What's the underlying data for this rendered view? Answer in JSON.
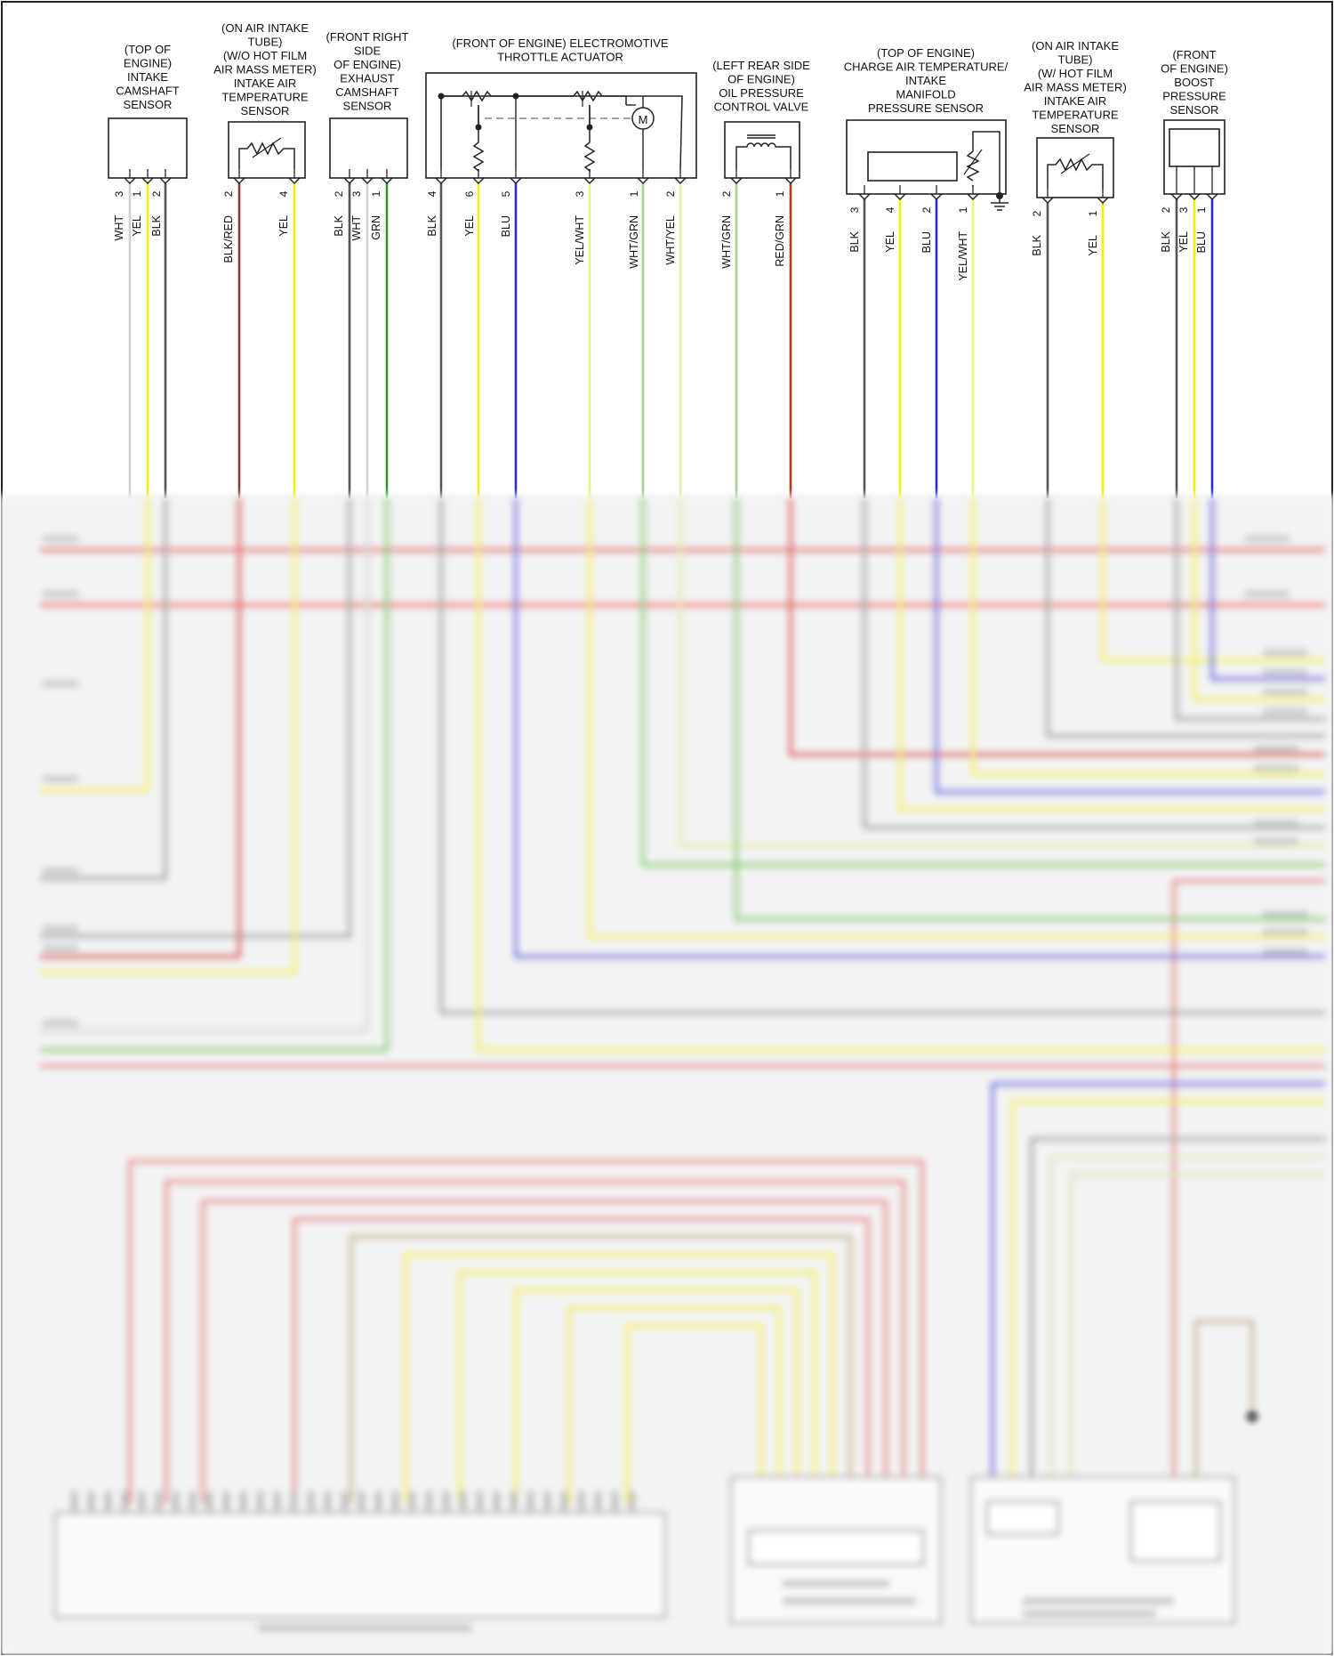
{
  "wire_colors": {
    "WHT": "#d0d0d0",
    "YEL": "#f2f200",
    "BLK": "#555555",
    "BLU": "#2b2bcc",
    "GRN": "#2c9a2c",
    "RED": "#b03a1a",
    "YEL/WHT": "#eef27a",
    "WHT/GRN": "#9fcf92",
    "WHT/YEL": "#e6f0a8",
    "BLK/RED": "#8a3a3a"
  },
  "components": [
    {
      "id": "intake-camshaft-sensor",
      "title_lines": [
        "(TOP OF",
        "ENGINE)",
        "INTAKE",
        "CAMSHAFT",
        "SENSOR"
      ],
      "pins": [
        {
          "pin": "3",
          "wire": "WHT"
        },
        {
          "pin": "1",
          "wire": "YEL"
        },
        {
          "pin": "2",
          "wire": "BLK"
        }
      ]
    },
    {
      "id": "intake-air-temp-sensor-wo-hfm",
      "title_lines": [
        "(ON AIR INTAKE",
        "TUBE)",
        "(W/O HOT FILM",
        "AIR MASS METER)",
        "INTAKE AIR",
        "TEMPERATURE",
        "SENSOR"
      ],
      "pins": [
        {
          "pin": "2",
          "wire": "BLK/RED"
        },
        {
          "pin": "4",
          "wire": "YEL"
        }
      ]
    },
    {
      "id": "exhaust-camshaft-sensor",
      "title_lines": [
        "(FRONT RIGHT",
        "SIDE",
        "OF ENGINE)",
        "EXHAUST",
        "CAMSHAFT",
        "SENSOR"
      ],
      "pins": [
        {
          "pin": "2",
          "wire": "BLK"
        },
        {
          "pin": "3",
          "wire": "WHT"
        },
        {
          "pin": "1",
          "wire": "GRN"
        }
      ]
    },
    {
      "id": "electromotive-throttle-actuator",
      "title_lines": [
        "(FRONT OF ENGINE) ELECTROMOTIVE",
        "THROTTLE ACTUATOR"
      ],
      "motor_label": "M",
      "pins": [
        {
          "pin": "4",
          "wire": "BLK"
        },
        {
          "pin": "6",
          "wire": "YEL"
        },
        {
          "pin": "5",
          "wire": "BLU"
        },
        {
          "pin": "3",
          "wire": "YEL/WHT"
        },
        {
          "pin": "1",
          "wire": "WHT/GRN"
        },
        {
          "pin": "2",
          "wire": "WHT/YEL"
        }
      ]
    },
    {
      "id": "oil-pressure-control-valve",
      "title_lines": [
        "(LEFT REAR SIDE",
        "OF ENGINE)",
        "OIL PRESSURE",
        "CONTROL VALVE"
      ],
      "pins": [
        {
          "pin": "2",
          "wire": "WHT/GRN"
        },
        {
          "pin": "1",
          "wire": "RED/GRN"
        }
      ]
    },
    {
      "id": "charge-air-temp-manifold-pressure-sensor",
      "title_lines": [
        "(TOP OF ENGINE)",
        "CHARGE AIR TEMPERATURE/",
        "INTAKE",
        "MANIFOLD",
        "PRESSURE SENSOR"
      ],
      "pins": [
        {
          "pin": "3",
          "wire": "BLK"
        },
        {
          "pin": "4",
          "wire": "YEL"
        },
        {
          "pin": "2",
          "wire": "BLU"
        },
        {
          "pin": "1",
          "wire": "YEL/WHT"
        }
      ]
    },
    {
      "id": "intake-air-temp-sensor-w-hfm",
      "title_lines": [
        "(ON AIR INTAKE",
        "TUBE)",
        "(W/ HOT FILM",
        "AIR MASS METER)",
        "INTAKE AIR",
        "TEMPERATURE",
        "SENSOR"
      ],
      "pins": [
        {
          "pin": "2",
          "wire": "BLK"
        },
        {
          "pin": "1",
          "wire": "YEL"
        }
      ]
    },
    {
      "id": "boost-pressure-sensor",
      "title_lines": [
        "(FRONT",
        "OF ENGINE)",
        "BOOST",
        "PRESSURE",
        "SENSOR"
      ],
      "pins": [
        {
          "pin": "2",
          "wire": "BLK"
        },
        {
          "pin": "3",
          "wire": "YEL"
        },
        {
          "pin": "1",
          "wire": "BLU"
        }
      ]
    }
  ]
}
